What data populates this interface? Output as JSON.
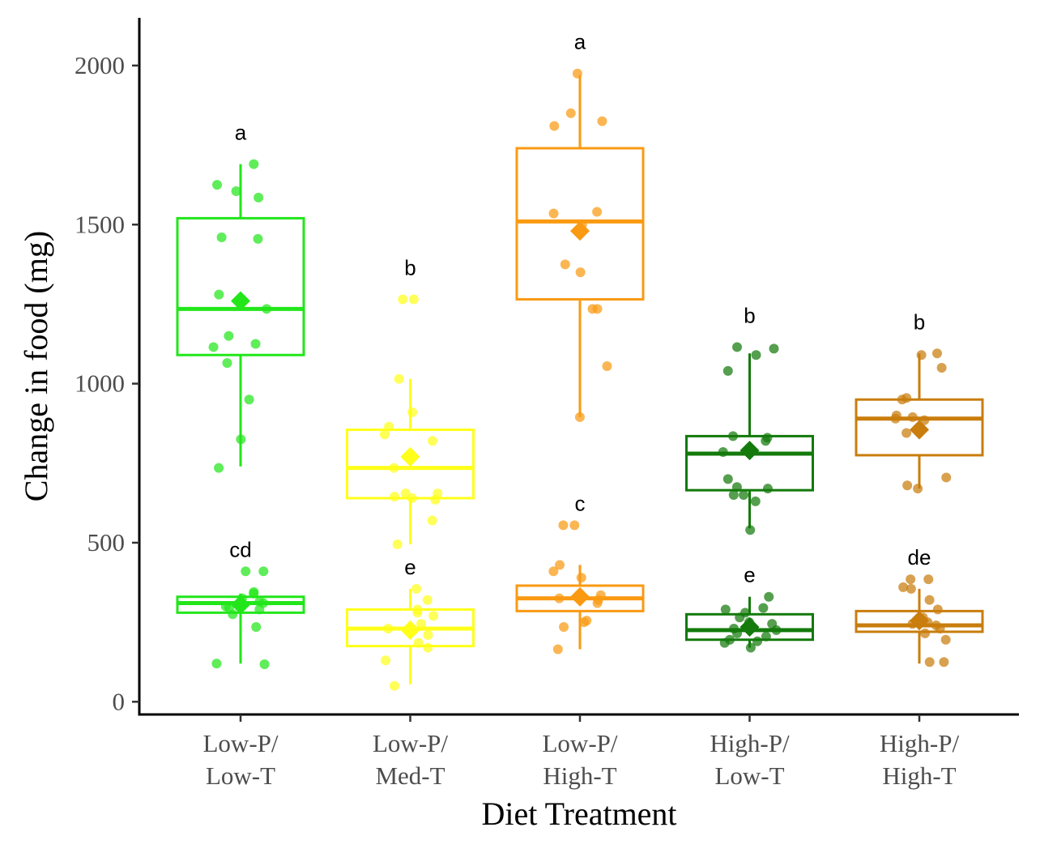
{
  "chart_data": {
    "type": "box",
    "xlabel": "Diet Treatment",
    "ylabel": "Change in food (mg)",
    "ylim": [
      -40,
      2150
    ],
    "yticks": [
      0,
      500,
      1000,
      1500,
      2000
    ],
    "legend": "none",
    "grid": false,
    "categories": [
      {
        "line1": "Low-P/",
        "line2": "Low-T",
        "color": "#22e61a"
      },
      {
        "line1": "Low-P/",
        "line2": "Med-T",
        "color": "#ffff1a"
      },
      {
        "line1": "Low-P/",
        "line2": "High-T",
        "color": "#fa9a12"
      },
      {
        "line1": "High-P/",
        "line2": "Low-T",
        "color": "#137a0b"
      },
      {
        "line1": "High-P/",
        "line2": "High-T",
        "color": "#c97d0d"
      }
    ],
    "upper_boxes": [
      {
        "min": 740,
        "q1": 1090,
        "median": 1235,
        "q3": 1520,
        "max": 1690,
        "mean": 1260,
        "letter": "a",
        "points": [
          1690,
          1625,
          1605,
          1585,
          1460,
          1455,
          1280,
          1235,
          1150,
          1125,
          1115,
          1065,
          950,
          825,
          735
        ]
      },
      {
        "min": 495,
        "q1": 640,
        "median": 735,
        "q3": 855,
        "max": 1015,
        "mean": 770,
        "letter": "b",
        "points": [
          1265,
          1265,
          1015,
          910,
          865,
          840,
          820,
          735,
          655,
          655,
          645,
          640,
          635,
          570,
          495
        ]
      },
      {
        "min": 895,
        "q1": 1265,
        "median": 1510,
        "q3": 1740,
        "max": 1970,
        "mean": 1480,
        "letter": "a",
        "points": [
          1975,
          1850,
          1825,
          1810,
          1540,
          1535,
          1500,
          1375,
          1350,
          1235,
          1235,
          1055,
          895
        ]
      },
      {
        "min": 545,
        "q1": 665,
        "median": 780,
        "q3": 835,
        "max": 1095,
        "mean": 790,
        "letter": "b",
        "points": [
          1115,
          1110,
          1090,
          1040,
          835,
          830,
          820,
          785,
          700,
          675,
          670,
          650,
          650,
          630,
          540
        ]
      },
      {
        "min": 670,
        "q1": 775,
        "median": 890,
        "q3": 950,
        "max": 1095,
        "mean": 855,
        "letter": "b",
        "points": [
          1095,
          1090,
          1050,
          955,
          950,
          900,
          895,
          890,
          885,
          845,
          705,
          680,
          670
        ]
      }
    ],
    "lower_boxes": [
      {
        "min": 120,
        "q1": 280,
        "median": 310,
        "q3": 330,
        "max": 340,
        "mean": 305,
        "letter": "cd",
        "points": [
          410,
          410,
          345,
          340,
          325,
          315,
          310,
          300,
          295,
          290,
          275,
          235,
          120,
          118
        ]
      },
      {
        "min": 55,
        "q1": 175,
        "median": 230,
        "q3": 290,
        "max": 355,
        "mean": 225,
        "letter": "e",
        "points": [
          355,
          320,
          290,
          280,
          270,
          245,
          230,
          225,
          210,
          185,
          170,
          130,
          50
        ]
      },
      {
        "min": 165,
        "q1": 285,
        "median": 325,
        "q3": 365,
        "max": 430,
        "mean": 330,
        "letter": "c",
        "points": [
          555,
          555,
          430,
          410,
          390,
          335,
          330,
          325,
          320,
          310,
          255,
          250,
          235,
          165
        ]
      },
      {
        "min": 170,
        "q1": 195,
        "median": 225,
        "q3": 275,
        "max": 330,
        "mean": 235,
        "letter": "e",
        "points": [
          330,
          295,
          290,
          280,
          265,
          250,
          245,
          230,
          225,
          215,
          205,
          195,
          190,
          185,
          170
        ]
      },
      {
        "min": 120,
        "q1": 220,
        "median": 240,
        "q3": 285,
        "max": 355,
        "mean": 255,
        "letter": "de",
        "points": [
          385,
          385,
          360,
          355,
          320,
          290,
          265,
          250,
          245,
          240,
          230,
          215,
          195,
          125,
          125
        ]
      }
    ]
  }
}
